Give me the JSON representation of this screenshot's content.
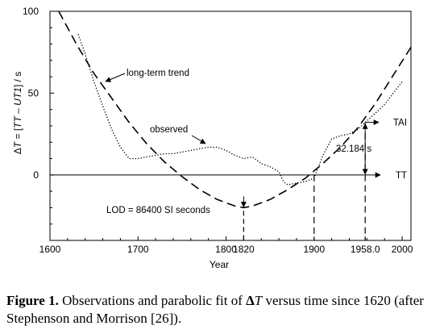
{
  "chart_data": {
    "type": "line",
    "xlabel": "Year",
    "ylabel_parts": [
      "Δ",
      "T",
      " = [",
      "TT",
      " – ",
      "UT1",
      "] / s"
    ],
    "xlim": [
      1600,
      2010
    ],
    "ylim": [
      -40,
      100
    ],
    "x_ticks": [
      1600,
      1700,
      1800,
      1820,
      1900,
      1958,
      2000
    ],
    "x_tick_labels": [
      "1600",
      "1700",
      "1800",
      "1820",
      "1900",
      "1958.0",
      "2000"
    ],
    "y_ticks": [
      0,
      50,
      100
    ],
    "y_tick_labels": [
      "0",
      "50",
      "100"
    ],
    "series": [
      {
        "label": "long-term trend",
        "style": "dashed",
        "x": [
          1610,
          1630,
          1650,
          1670,
          1690,
          1710,
          1730,
          1750,
          1770,
          1790,
          1810,
          1820,
          1830,
          1850,
          1870,
          1890,
          1910,
          1930,
          1950,
          1970,
          1990,
          2010
        ],
        "y": [
          100,
          80,
          62,
          47,
          32,
          19,
          8,
          -1,
          -9,
          -15,
          -19,
          -20,
          -19,
          -15,
          -9,
          -2,
          7,
          17,
          29,
          44,
          61,
          78
        ]
      },
      {
        "label": "observed",
        "style": "dotted",
        "x": [
          1632,
          1640,
          1650,
          1660,
          1670,
          1680,
          1690,
          1700,
          1710,
          1720,
          1730,
          1740,
          1750,
          1760,
          1770,
          1780,
          1790,
          1800,
          1810,
          1820,
          1830,
          1840,
          1850,
          1860,
          1865,
          1870,
          1880,
          1890,
          1900,
          1910,
          1920,
          1930,
          1940,
          1950,
          1958,
          1970,
          1980,
          1990,
          2000
        ],
        "y": [
          86,
          74,
          57,
          42,
          28,
          17,
          10,
          10,
          11,
          12,
          13,
          13,
          14,
          15,
          16,
          17,
          17,
          15,
          12,
          10,
          11,
          7,
          5,
          2,
          -4,
          -6,
          -5,
          -4,
          -2,
          12,
          22,
          24,
          25,
          28,
          32,
          38,
          43,
          50,
          57
        ]
      }
    ],
    "annotations": {
      "trend_label": "long-term trend",
      "observed_label": "observed",
      "lod_label": "LOD = 86400 SI seconds",
      "offset_label": "32.184 s",
      "tai_label": "TAI",
      "tt_label": "TT",
      "tt_value": 0,
      "tai_value": 32.184,
      "lod_year": 1820,
      "lod_value": -20,
      "crossing_year": 1900,
      "ref_year": 1958
    }
  },
  "caption": {
    "figure_label": "Figure 1.",
    "text_before": " Observations and parabolic fit of ",
    "delta": "Δ",
    "t_symbol": "T",
    "text_after": " versus time since 1620 (after Stephenson and Morrison [26])."
  }
}
